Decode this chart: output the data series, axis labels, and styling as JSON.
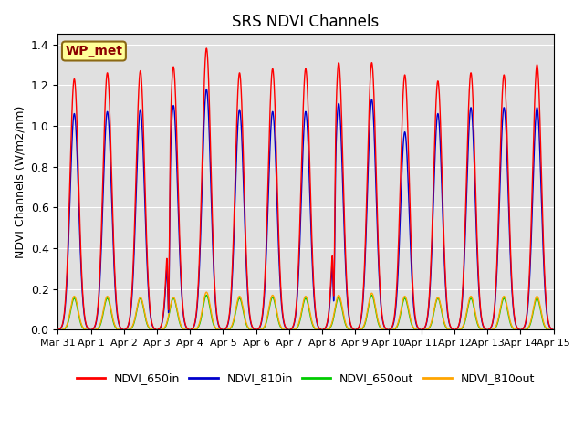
{
  "title": "SRS NDVI Channels",
  "ylabel": "NDVI Channels (W/m2/nm)",
  "ylim": [
    0,
    1.45
  ],
  "annotation_text": "WP_met",
  "annotation_bg": "#FFFF99",
  "annotation_border": "#8B6914",
  "annotation_text_color": "#8B0000",
  "bg_color": "#FFFFFF",
  "plot_bg_color": "#E0E0E0",
  "grid_color": "#FFFFFF",
  "line_colors": {
    "NDVI_650in": "#FF0000",
    "NDVI_810in": "#0000CC",
    "NDVI_650out": "#00CC00",
    "NDVI_810out": "#FFA500"
  },
  "peak_650in": [
    1.23,
    1.26,
    1.27,
    1.29,
    1.38,
    1.26,
    1.28,
    1.28,
    1.31,
    1.31,
    1.25,
    1.22,
    1.26,
    1.25,
    1.3
  ],
  "peak_810in": [
    1.06,
    1.07,
    1.08,
    1.1,
    1.18,
    1.08,
    1.07,
    1.07,
    1.11,
    1.13,
    0.97,
    1.06,
    1.09,
    1.09,
    1.09
  ],
  "peak_650out": [
    0.155,
    0.155,
    0.155,
    0.155,
    0.17,
    0.155,
    0.16,
    0.155,
    0.16,
    0.17,
    0.155,
    0.155,
    0.155,
    0.155,
    0.155
  ],
  "peak_810out": [
    0.165,
    0.165,
    0.16,
    0.16,
    0.185,
    0.165,
    0.17,
    0.165,
    0.17,
    0.18,
    0.165,
    0.16,
    0.165,
    0.165,
    0.165
  ],
  "date_labels": [
    "Mar 31",
    "Apr 1",
    "Apr 2",
    "Apr 3",
    "Apr 4",
    "Apr 5",
    "Apr 6",
    "Apr 7",
    "Apr 8",
    "Apr 9",
    "Apr 10",
    "Apr 11",
    "Apr 12",
    "Apr 13",
    "Apr 14",
    "Apr 15"
  ]
}
